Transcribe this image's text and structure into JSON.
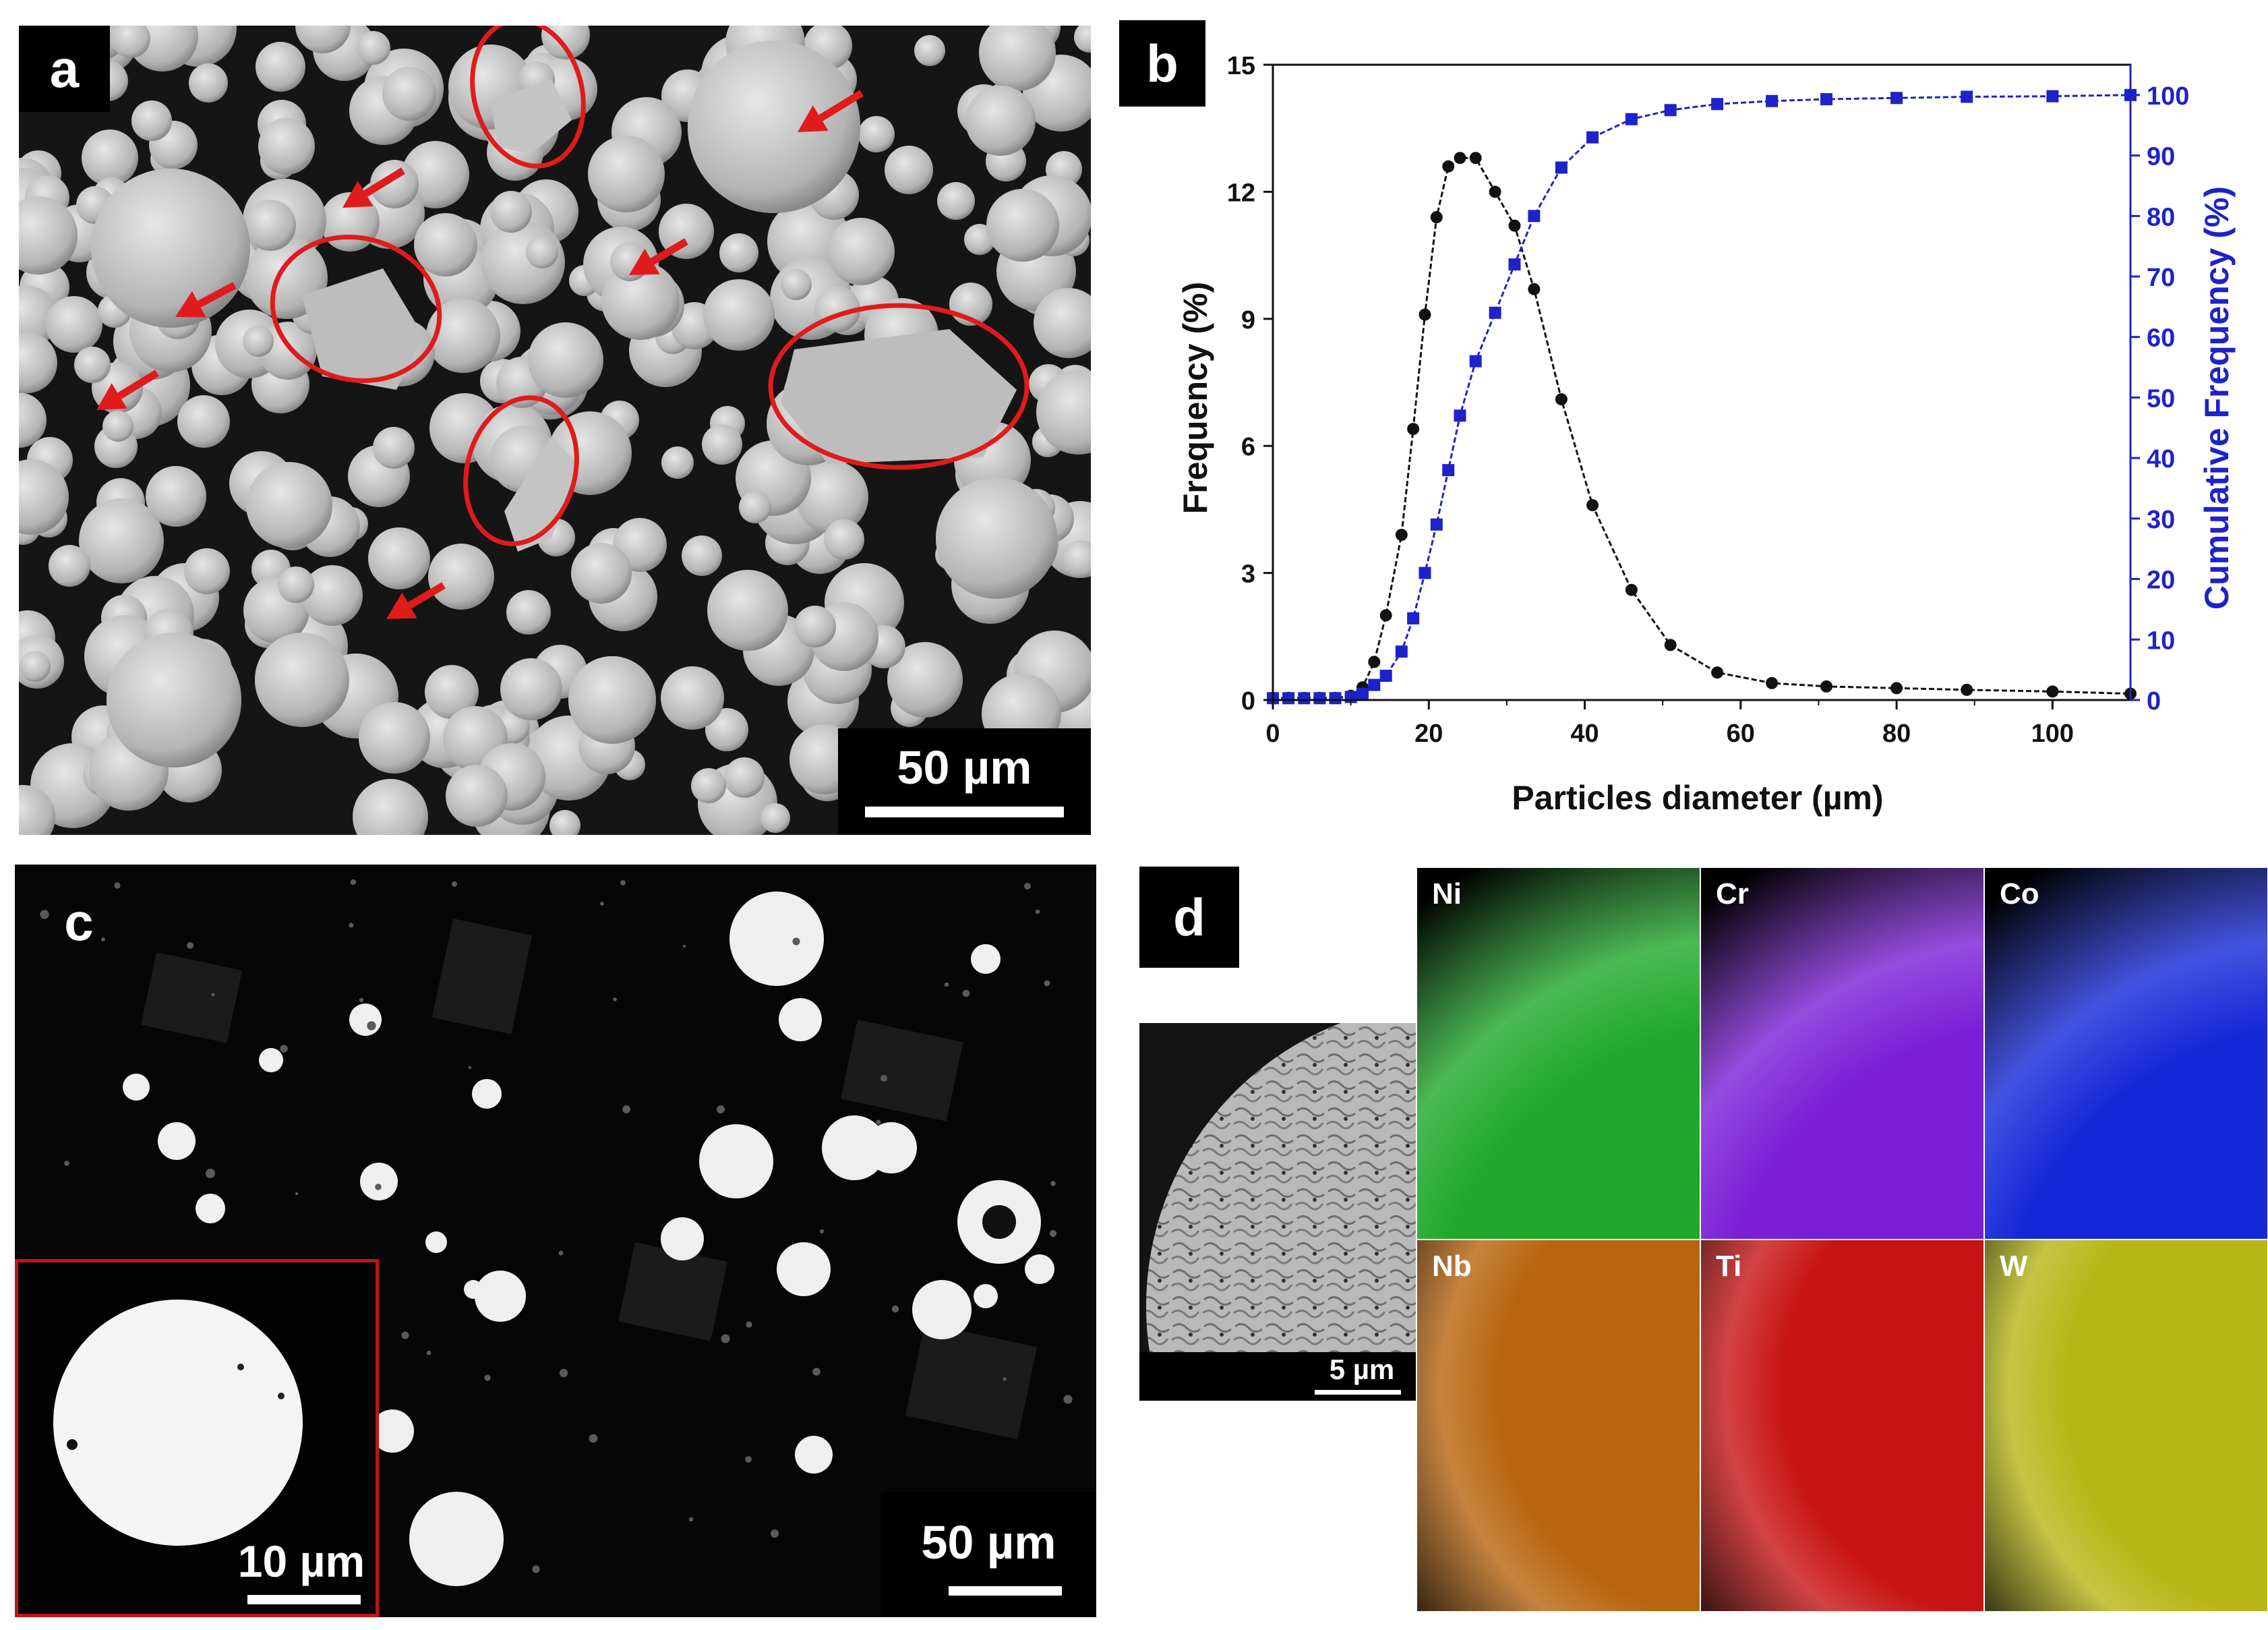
{
  "panels": {
    "a": {
      "tag": "a",
      "scale_label": "50 µm"
    },
    "b": {
      "tag": "b"
    },
    "c": {
      "tag": "c",
      "scale_label": "50 µm",
      "inset_scale_label": "10 µm"
    },
    "d": {
      "tag": "d",
      "scale_label": "5 µm",
      "maps": [
        {
          "element": "Ni",
          "color": "#1fa82a"
        },
        {
          "element": "Cr",
          "color": "#7a1fd6"
        },
        {
          "element": "Co",
          "color": "#1428d8"
        },
        {
          "element": "Nb",
          "color": "#b8650f"
        },
        {
          "element": "Ti",
          "color": "#c81414"
        },
        {
          "element": "W",
          "color": "#b8b616"
        }
      ]
    }
  },
  "colors": {
    "annotation_red": "#e01b1b",
    "cumulative_blue": "#1f22c8",
    "frequency_black": "#111111"
  },
  "chart_data": {
    "type": "line",
    "xlabel": "Particles diameter (µm)",
    "ylabel": "Frequency (%)",
    "y2label": "Cumulative Frequency (%)",
    "xlim": [
      0,
      110
    ],
    "ylim": [
      0,
      15
    ],
    "y2lim": [
      0,
      105
    ],
    "xticks": [
      "0",
      "20",
      "40",
      "60",
      "80",
      "100"
    ],
    "yticks": [
      "0",
      "3",
      "6",
      "9",
      "12",
      "15"
    ],
    "y2ticks": [
      "0",
      "10",
      "20",
      "30",
      "40",
      "50",
      "60",
      "70",
      "80",
      "90",
      "100"
    ],
    "series": [
      {
        "axis": "left",
        "marker": "circle",
        "color": "#111111",
        "x": [
          0,
          2,
          4,
          6,
          8,
          10,
          11.5,
          13,
          14.5,
          16.5,
          18,
          19.5,
          21,
          22.5,
          24,
          26,
          28.5,
          31,
          33.5,
          37,
          41,
          46,
          51,
          57,
          64,
          71,
          80,
          89,
          100,
          110
        ],
        "y": [
          0.05,
          0.05,
          0.05,
          0.05,
          0.05,
          0.1,
          0.3,
          0.9,
          2.0,
          3.9,
          6.4,
          9.1,
          11.4,
          12.6,
          12.8,
          12.8,
          12.0,
          11.2,
          9.7,
          7.1,
          4.6,
          2.6,
          1.3,
          0.65,
          0.4,
          0.32,
          0.28,
          0.24,
          0.2,
          0.15
        ]
      },
      {
        "axis": "right",
        "marker": "square",
        "color": "#1f22c8",
        "x": [
          0,
          2,
          4,
          6,
          8,
          10,
          11.5,
          13,
          14.5,
          16.5,
          18,
          19.5,
          21,
          22.5,
          24,
          26,
          28.5,
          31,
          33.5,
          37,
          41,
          46,
          51,
          57,
          64,
          71,
          80,
          89,
          100,
          110
        ],
        "y": [
          0.3,
          0.3,
          0.3,
          0.3,
          0.3,
          0.5,
          1,
          2.5,
          4,
          8,
          13.5,
          21,
          29,
          38,
          47,
          56,
          64,
          72,
          80,
          88,
          93,
          96,
          97.5,
          98.5,
          99,
          99.3,
          99.5,
          99.7,
          99.8,
          100
        ]
      }
    ]
  }
}
